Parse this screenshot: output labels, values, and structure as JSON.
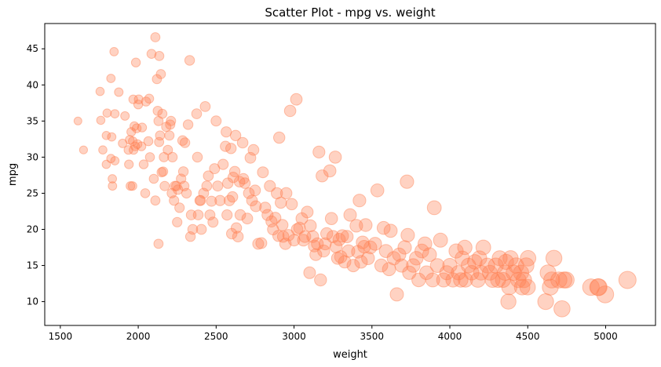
{
  "chart_data": {
    "type": "scatter",
    "title": "Scatter Plot - mpg vs. weight",
    "xlabel": "weight",
    "ylabel": "mpg",
    "xlim": [
      1400,
      5320
    ],
    "ylim": [
      6.7,
      48.5
    ],
    "xticks": [
      1500,
      2000,
      2500,
      3000,
      3500,
      4000,
      4500,
      5000
    ],
    "yticks": [
      10,
      15,
      20,
      25,
      30,
      35,
      40,
      45
    ],
    "grid": false,
    "legend": "none",
    "marker_color": "#ff7f50",
    "marker_alpha": 0.35,
    "size_encoding": "marker area grows with weight",
    "points": [
      [
        1613,
        35
      ],
      [
        1649,
        31
      ],
      [
        1755,
        39.1
      ],
      [
        1760,
        35.1
      ],
      [
        1773,
        31
      ],
      [
        1795,
        33
      ],
      [
        1800,
        36.1
      ],
      [
        1825,
        29.8
      ],
      [
        1835,
        26
      ],
      [
        1834,
        27
      ],
      [
        1845,
        44.6
      ],
      [
        1850,
        29.5
      ],
      [
        1875,
        39
      ],
      [
        1795,
        29
      ],
      [
        1825,
        40.9
      ],
      [
        1830,
        32.8
      ],
      [
        1850,
        36
      ],
      [
        1900,
        31.9
      ],
      [
        1915,
        35.7
      ],
      [
        1937,
        31
      ],
      [
        1940,
        29
      ],
      [
        1945,
        32.4
      ],
      [
        1950,
        26
      ],
      [
        1955,
        33.5
      ],
      [
        1963,
        26
      ],
      [
        1965,
        32.2
      ],
      [
        1968,
        38
      ],
      [
        1970,
        31
      ],
      [
        1975,
        34.3
      ],
      [
        1980,
        31.5
      ],
      [
        1985,
        43.1
      ],
      [
        1990,
        34
      ],
      [
        1995,
        31.8
      ],
      [
        2000,
        37.3
      ],
      [
        2003,
        38
      ],
      [
        2020,
        31.5
      ],
      [
        2025,
        34.1
      ],
      [
        2035,
        29
      ],
      [
        2045,
        25
      ],
      [
        2050,
        37.7
      ],
      [
        2065,
        32.2
      ],
      [
        2070,
        38.1
      ],
      [
        2075,
        30
      ],
      [
        2085,
        44.3
      ],
      [
        2100,
        27
      ],
      [
        2110,
        24
      ],
      [
        2110,
        46.6
      ],
      [
        2120,
        40.8
      ],
      [
        2125,
        36.4
      ],
      [
        2130,
        18
      ],
      [
        2130,
        35
      ],
      [
        2134,
        32.1
      ],
      [
        2135,
        44
      ],
      [
        2140,
        33
      ],
      [
        2145,
        41.5
      ],
      [
        2150,
        27.9
      ],
      [
        2155,
        36
      ],
      [
        2160,
        28
      ],
      [
        2165,
        30
      ],
      [
        2170,
        26
      ],
      [
        2180,
        34.2
      ],
      [
        2190,
        31
      ],
      [
        2200,
        33
      ],
      [
        2205,
        34.5
      ],
      [
        2210,
        35
      ],
      [
        2215,
        25
      ],
      [
        2220,
        30
      ],
      [
        2230,
        24
      ],
      [
        2235,
        26
      ],
      [
        2245,
        26
      ],
      [
        2250,
        21
      ],
      [
        2255,
        25.5
      ],
      [
        2265,
        23
      ],
      [
        2275,
        27
      ],
      [
        2285,
        32.3
      ],
      [
        2290,
        28
      ],
      [
        2295,
        26
      ],
      [
        2300,
        32
      ],
      [
        2310,
        25
      ],
      [
        2320,
        34.5
      ],
      [
        2330,
        43.4
      ],
      [
        2335,
        19
      ],
      [
        2340,
        22
      ],
      [
        2350,
        20
      ],
      [
        2375,
        36
      ],
      [
        2380,
        30
      ],
      [
        2385,
        22
      ],
      [
        2395,
        24
      ],
      [
        2400,
        24
      ],
      [
        2405,
        20
      ],
      [
        2420,
        25
      ],
      [
        2430,
        37
      ],
      [
        2440,
        26
      ],
      [
        2450,
        27.4
      ],
      [
        2460,
        22
      ],
      [
        2470,
        23.9
      ],
      [
        2480,
        21
      ],
      [
        2490,
        28.4
      ],
      [
        2500,
        35
      ],
      [
        2510,
        26
      ],
      [
        2525,
        24
      ],
      [
        2545,
        29
      ],
      [
        2560,
        31.5
      ],
      [
        2565,
        33.5
      ],
      [
        2570,
        22
      ],
      [
        2575,
        26.4
      ],
      [
        2585,
        24
      ],
      [
        2595,
        31.2
      ],
      [
        2600,
        19.4
      ],
      [
        2605,
        24.5
      ],
      [
        2610,
        27.2
      ],
      [
        2620,
        28
      ],
      [
        2625,
        33
      ],
      [
        2630,
        20.2
      ],
      [
        2640,
        19
      ],
      [
        2650,
        26.6
      ],
      [
        2655,
        22
      ],
      [
        2670,
        32
      ],
      [
        2675,
        27
      ],
      [
        2685,
        26.4
      ],
      [
        2700,
        21.5
      ],
      [
        2710,
        25
      ],
      [
        2720,
        29.9
      ],
      [
        2730,
        24
      ],
      [
        2740,
        31
      ],
      [
        2750,
        25.4
      ],
      [
        2755,
        23.2
      ],
      [
        2770,
        18
      ],
      [
        2790,
        18.1
      ],
      [
        2800,
        27.9
      ],
      [
        2815,
        23
      ],
      [
        2830,
        22
      ],
      [
        2845,
        26
      ],
      [
        2855,
        21.1
      ],
      [
        2865,
        20
      ],
      [
        2880,
        21.6
      ],
      [
        2890,
        25
      ],
      [
        2900,
        19.1
      ],
      [
        2905,
        32.7
      ],
      [
        2915,
        23.7
      ],
      [
        2925,
        20.6
      ],
      [
        2930,
        19
      ],
      [
        2945,
        18
      ],
      [
        2950,
        25
      ],
      [
        2965,
        19.2
      ],
      [
        2975,
        36.4
      ],
      [
        2985,
        23.5
      ],
      [
        3000,
        18.5
      ],
      [
        3015,
        38
      ],
      [
        3020,
        20
      ],
      [
        3035,
        20.2
      ],
      [
        3050,
        21.5
      ],
      [
        3060,
        18.5
      ],
      [
        3070,
        19
      ],
      [
        3085,
        22.4
      ],
      [
        3100,
        14
      ],
      [
        3105,
        20.5
      ],
      [
        3120,
        19
      ],
      [
        3130,
        17.7
      ],
      [
        3140,
        16.5
      ],
      [
        3150,
        18
      ],
      [
        3160,
        30.7
      ],
      [
        3170,
        13
      ],
      [
        3180,
        27.4
      ],
      [
        3190,
        17
      ],
      [
        3200,
        18
      ],
      [
        3210,
        19.4
      ],
      [
        3230,
        28.1
      ],
      [
        3240,
        21.5
      ],
      [
        3250,
        19
      ],
      [
        3265,
        30
      ],
      [
        3270,
        17.6
      ],
      [
        3280,
        16
      ],
      [
        3290,
        18.6
      ],
      [
        3300,
        16.2
      ],
      [
        3310,
        19.1
      ],
      [
        3325,
        15.5
      ],
      [
        3340,
        19
      ],
      [
        3350,
        17
      ],
      [
        3360,
        22
      ],
      [
        3380,
        15
      ],
      [
        3400,
        20.5
      ],
      [
        3410,
        16.9
      ],
      [
        3420,
        24
      ],
      [
        3430,
        15.5
      ],
      [
        3440,
        18.2
      ],
      [
        3450,
        17.6
      ],
      [
        3460,
        20.6
      ],
      [
        3475,
        16
      ],
      [
        3490,
        17.5
      ],
      [
        3520,
        18
      ],
      [
        3535,
        25.4
      ],
      [
        3560,
        15
      ],
      [
        3575,
        20.2
      ],
      [
        3590,
        17
      ],
      [
        3610,
        14.5
      ],
      [
        3620,
        19.8
      ],
      [
        3640,
        16
      ],
      [
        3660,
        11
      ],
      [
        3675,
        16.5
      ],
      [
        3690,
        15
      ],
      [
        3710,
        17.5
      ],
      [
        3725,
        26.6
      ],
      [
        3730,
        19.2
      ],
      [
        3740,
        14
      ],
      [
        3765,
        15
      ],
      [
        3785,
        16
      ],
      [
        3800,
        13
      ],
      [
        3820,
        17
      ],
      [
        3840,
        18
      ],
      [
        3850,
        14
      ],
      [
        3870,
        16.5
      ],
      [
        3890,
        13
      ],
      [
        3900,
        23
      ],
      [
        3920,
        15
      ],
      [
        3940,
        18.5
      ],
      [
        3960,
        13
      ],
      [
        3980,
        14
      ],
      [
        4000,
        15
      ],
      [
        4020,
        13
      ],
      [
        4040,
        17
      ],
      [
        4055,
        14
      ],
      [
        4070,
        13
      ],
      [
        4080,
        16
      ],
      [
        4096,
        17.5
      ],
      [
        4100,
        13
      ],
      [
        4120,
        15
      ],
      [
        4140,
        14
      ],
      [
        4160,
        15.5
      ],
      [
        4180,
        13
      ],
      [
        4190,
        16
      ],
      [
        4200,
        14
      ],
      [
        4215,
        17.5
      ],
      [
        4240,
        15
      ],
      [
        4257,
        14
      ],
      [
        4274,
        13
      ],
      [
        4295,
        15
      ],
      [
        4310,
        13
      ],
      [
        4320,
        16
      ],
      [
        4341,
        13
      ],
      [
        4354,
        14
      ],
      [
        4360,
        15.5
      ],
      [
        4376,
        10
      ],
      [
        4382,
        12
      ],
      [
        4390,
        16
      ],
      [
        4410,
        14
      ],
      [
        4425,
        15
      ],
      [
        4440,
        13
      ],
      [
        4457,
        14
      ],
      [
        4464,
        12
      ],
      [
        4475,
        13
      ],
      [
        4490,
        15
      ],
      [
        4499,
        12
      ],
      [
        4502,
        16
      ],
      [
        4615,
        10
      ],
      [
        4630,
        14
      ],
      [
        4645,
        12
      ],
      [
        4654,
        13
      ],
      [
        4668,
        16
      ],
      [
        4700,
        13
      ],
      [
        4720,
        9
      ],
      [
        4732,
        13
      ],
      [
        4746,
        13
      ],
      [
        4906,
        12
      ],
      [
        4951,
        12
      ],
      [
        4955,
        12
      ],
      [
        4997,
        11
      ],
      [
        5140,
        13
      ]
    ]
  }
}
